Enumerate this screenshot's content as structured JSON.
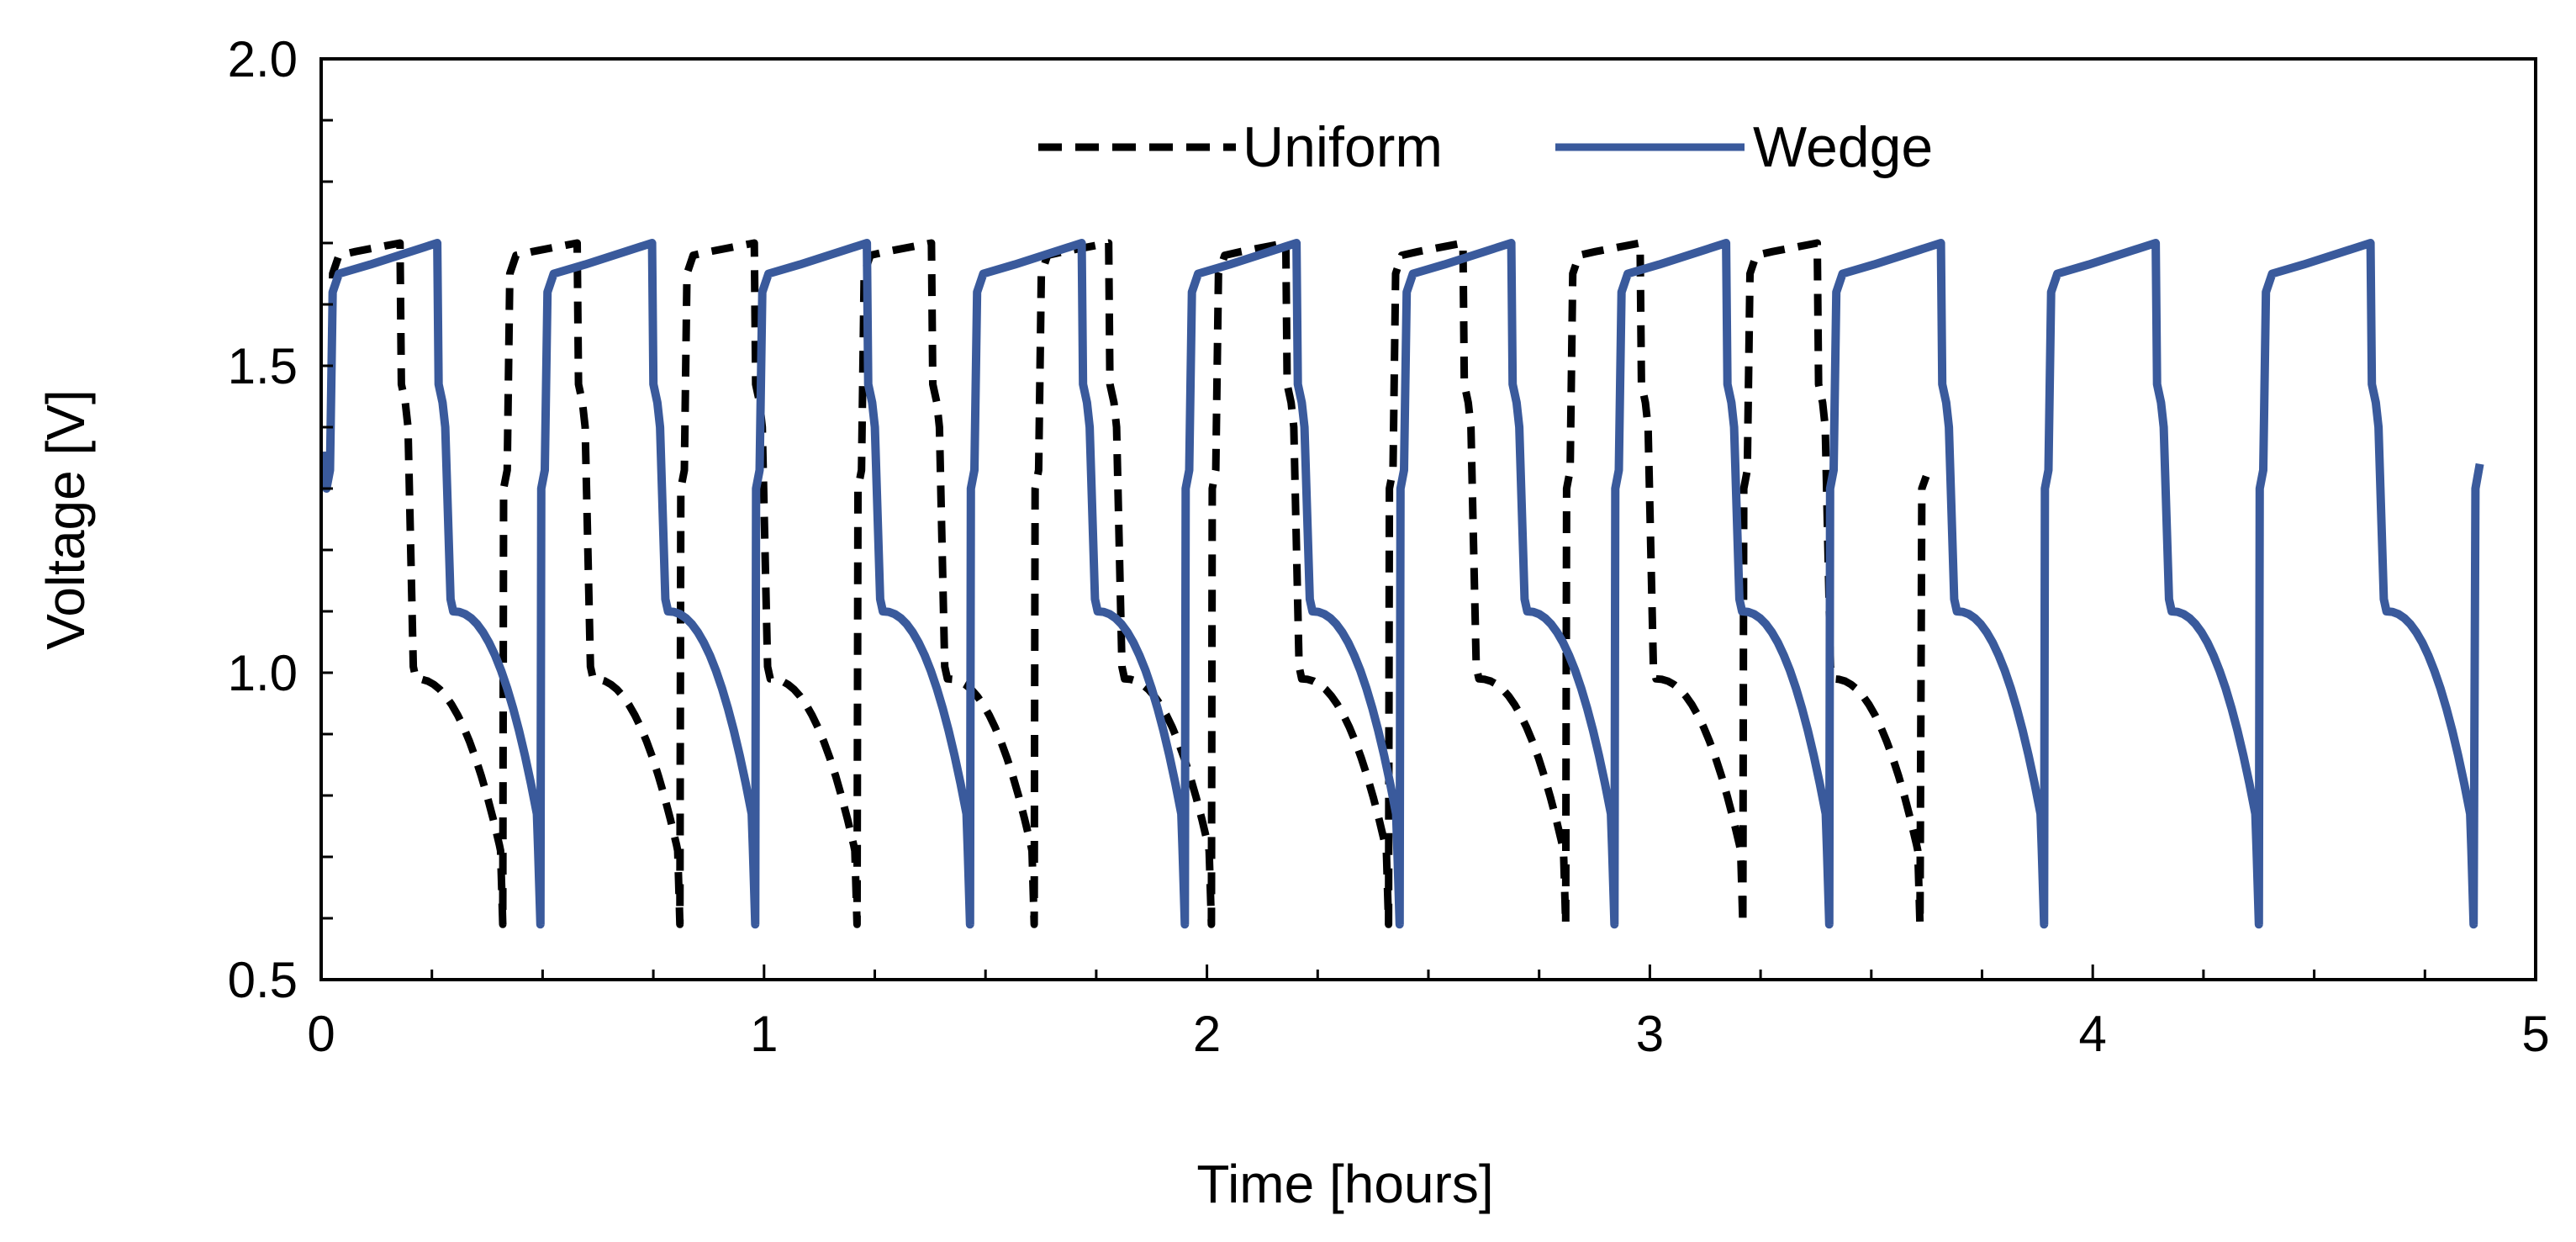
{
  "chart_data": {
    "type": "line",
    "title": "",
    "xlabel": "Time [hours]",
    "ylabel": "Voltage [V]",
    "xlim": [
      0,
      5
    ],
    "ylim": [
      0.5,
      2.0
    ],
    "x_ticks": [
      0,
      1,
      2,
      3,
      4,
      5
    ],
    "x_tick_labels": [
      "0",
      "1",
      "2",
      "3",
      "4",
      "5"
    ],
    "y_ticks": [
      0.5,
      1.0,
      1.5,
      2.0
    ],
    "y_tick_labels": [
      "0.5",
      "1.0",
      "1.5",
      "2.0"
    ],
    "x_minor_step": 0.25,
    "y_minor_step": 0.1,
    "grid": false,
    "legend": "top-center",
    "series": [
      {
        "name": "Uniform",
        "color": "#000000",
        "style": "dashed",
        "cycle_period_hours": 0.4,
        "cycle_count": 9,
        "charge_start_voltage": 1.68,
        "charge_end_voltage": 1.7,
        "discharge_plateau_voltage": 0.99,
        "cutoff_voltage": 0.59,
        "final_value": 1.32
      },
      {
        "name": "Wedge",
        "color": "#3A5A9C",
        "style": "solid",
        "cycle_period_hours": 0.485,
        "cycle_count": 10,
        "charge_start_voltage": 1.65,
        "charge_end_voltage": 1.7,
        "discharge_plateau_voltage": 1.1,
        "cutoff_voltage": 0.59,
        "final_value": 1.34
      }
    ]
  }
}
